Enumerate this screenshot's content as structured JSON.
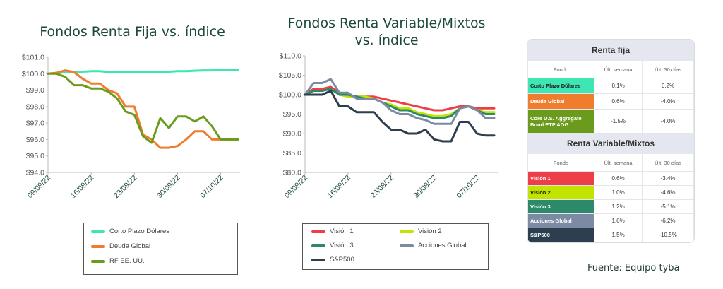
{
  "colors": {
    "corto_plazo": "#3ee6b4",
    "deuda_global": "#f07d2e",
    "rf_eeuu": "#6b9b1c",
    "vision1": "#ee3f48",
    "vision2": "#c3e300",
    "vision3": "#2c8a6b",
    "acciones_global": "#7d8aa3",
    "sp500": "#2d3e4e",
    "title": "#1d4a38"
  },
  "chart_data": [
    {
      "type": "line",
      "title": "Fondos Renta Fija vs. índice",
      "x_dates": [
        "09/09/22",
        "12/09/22",
        "13/09/22",
        "14/09/22",
        "15/09/22",
        "16/09/22",
        "19/09/22",
        "20/09/22",
        "21/09/22",
        "22/09/22",
        "23/09/22",
        "26/09/22",
        "27/09/22",
        "28/09/22",
        "29/09/22",
        "30/09/22",
        "03/10/22",
        "04/10/22",
        "05/10/22",
        "06/10/22",
        "07/10/22",
        "10/10/22",
        "11/10/22"
      ],
      "x_ticks": [
        "09/09/22",
        "16/09/22",
        "23/09/22",
        "30/09/22",
        "07/10/22"
      ],
      "y_ticks": [
        "$94.0",
        "$95.0",
        "$96.0",
        "$97.0",
        "$98.0",
        "$99.0",
        "$100.0",
        "$101.0"
      ],
      "ylim": [
        94,
        101
      ],
      "series": [
        {
          "name": "Corto Plazo Dólares",
          "color_key": "corto_plazo",
          "values": [
            100.0,
            100.05,
            100.08,
            100.1,
            100.12,
            100.15,
            100.15,
            100.1,
            100.12,
            100.1,
            100.12,
            100.1,
            100.1,
            100.12,
            100.12,
            100.15,
            100.15,
            100.18,
            100.2,
            100.2,
            100.22,
            100.22,
            100.22
          ]
        },
        {
          "name": "Deuda Global",
          "color_key": "deuda_global",
          "values": [
            100.0,
            100.05,
            100.2,
            100.1,
            99.7,
            99.4,
            99.4,
            99.0,
            98.8,
            98.0,
            98.0,
            96.3,
            96.0,
            95.5,
            95.5,
            95.6,
            96.0,
            96.5,
            96.5,
            96.0,
            96.0,
            96.0,
            96.0
          ]
        },
        {
          "name": "RF EE. UU.",
          "color_key": "rf_eeuu",
          "values": [
            100.0,
            100.0,
            99.8,
            99.3,
            99.3,
            99.1,
            99.1,
            98.9,
            98.5,
            97.7,
            97.5,
            96.2,
            95.8,
            97.3,
            96.7,
            97.4,
            97.4,
            97.1,
            97.4,
            96.8,
            96.0,
            96.0,
            96.0
          ]
        }
      ]
    },
    {
      "type": "line",
      "title": "Fondos Renta Variable/Mixtos vs. índice",
      "x_dates": [
        "09/09/22",
        "12/09/22",
        "13/09/22",
        "14/09/22",
        "15/09/22",
        "16/09/22",
        "19/09/22",
        "20/09/22",
        "21/09/22",
        "22/09/22",
        "23/09/22",
        "26/09/22",
        "27/09/22",
        "28/09/22",
        "29/09/22",
        "30/09/22",
        "03/10/22",
        "04/10/22",
        "05/10/22",
        "06/10/22",
        "07/10/22",
        "10/10/22",
        "11/10/22"
      ],
      "x_ticks": [
        "09/09/22",
        "16/09/22",
        "23/09/22",
        "30/09/22",
        "07/10/22"
      ],
      "y_ticks": [
        "$80.0",
        "$85.0",
        "$90.0",
        "$95.0",
        "$100.0",
        "$105.0",
        "$110.0"
      ],
      "ylim": [
        80,
        110
      ],
      "series": [
        {
          "name": "Visión 1",
          "color_key": "vision1",
          "values": [
            100.0,
            101.5,
            101.5,
            102.0,
            100.5,
            100.0,
            99.5,
            99.5,
            99.5,
            99.0,
            98.5,
            98.0,
            97.5,
            97.0,
            96.5,
            96.0,
            96.0,
            96.5,
            97.0,
            97.0,
            96.5,
            96.5,
            96.5
          ]
        },
        {
          "name": "Visión 2",
          "color_key": "vision2",
          "values": [
            100.0,
            101.0,
            101.0,
            101.5,
            100.0,
            99.5,
            99.5,
            99.5,
            99.0,
            98.0,
            97.5,
            96.5,
            96.5,
            95.5,
            95.0,
            94.5,
            94.5,
            95.0,
            96.5,
            97.0,
            96.0,
            95.5,
            95.5
          ]
        },
        {
          "name": "Visión 3",
          "color_key": "vision3",
          "values": [
            100.0,
            101.0,
            101.0,
            101.5,
            100.0,
            100.0,
            99.5,
            99.0,
            99.0,
            98.0,
            97.0,
            96.0,
            96.0,
            95.0,
            94.5,
            94.0,
            94.0,
            94.5,
            96.5,
            97.0,
            96.0,
            95.0,
            95.0
          ]
        },
        {
          "name": "Acciones Global",
          "color_key": "acciones_global",
          "values": [
            100.0,
            103.0,
            103.0,
            104.0,
            100.5,
            100.5,
            99.0,
            99.0,
            99.0,
            98.0,
            96.0,
            95.0,
            95.0,
            94.0,
            93.5,
            92.5,
            92.5,
            92.5,
            96.5,
            97.0,
            96.0,
            94.0,
            94.0
          ]
        },
        {
          "name": "S&P500",
          "color_key": "sp500",
          "values": [
            100.0,
            100.0,
            100.0,
            101.0,
            97.0,
            97.0,
            95.5,
            95.5,
            95.5,
            93.0,
            91.0,
            91.0,
            90.0,
            90.0,
            91.0,
            88.5,
            88.0,
            88.0,
            93.0,
            93.0,
            90.0,
            89.5,
            89.5
          ]
        }
      ]
    }
  ],
  "table": {
    "rf_section": "Renta fija",
    "rv_section": "Renta Variable/Mixtos",
    "col_fondo": "Fondo",
    "col_semana": "Últ. semana",
    "col_30": "Últ. 30 días",
    "rf_rows": [
      {
        "name": "Corto Plazo Dólares",
        "semana": "0.1%",
        "d30": "0.2%",
        "color_key": "corto_plazo",
        "text_color": "#1a1a1a"
      },
      {
        "name": "Deuda Global",
        "semana": "0.6%",
        "d30": "-4.0%",
        "color_key": "deuda_global",
        "text_color": "#ffffff"
      },
      {
        "name": "Core U.S. Aggregate Bond ETF AGG",
        "semana": "-1.5%",
        "d30": "-4.0%",
        "color_key": "rf_eeuu",
        "text_color": "#ffffff"
      }
    ],
    "rv_rows": [
      {
        "name": "Visión 1",
        "semana": "0.6%",
        "d30": "-3.4%",
        "color_key": "vision1",
        "text_color": "#ffffff"
      },
      {
        "name": "Visión 2",
        "semana": "1.0%",
        "d30": "-4.6%",
        "color_key": "vision2",
        "text_color": "#1a1a1a"
      },
      {
        "name": "Visión 3",
        "semana": "1.2%",
        "d30": "-5.1%",
        "color_key": "vision3",
        "text_color": "#ffffff"
      },
      {
        "name": "Acciones Global",
        "semana": "1.6%",
        "d30": "-6.2%",
        "color_key": "acciones_global",
        "text_color": "#ffffff"
      },
      {
        "name": "S&P500",
        "semana": "1.5%",
        "d30": "-10.5%",
        "color_key": "sp500",
        "text_color": "#ffffff"
      }
    ]
  },
  "source": "Fuente: Equipo tyba"
}
